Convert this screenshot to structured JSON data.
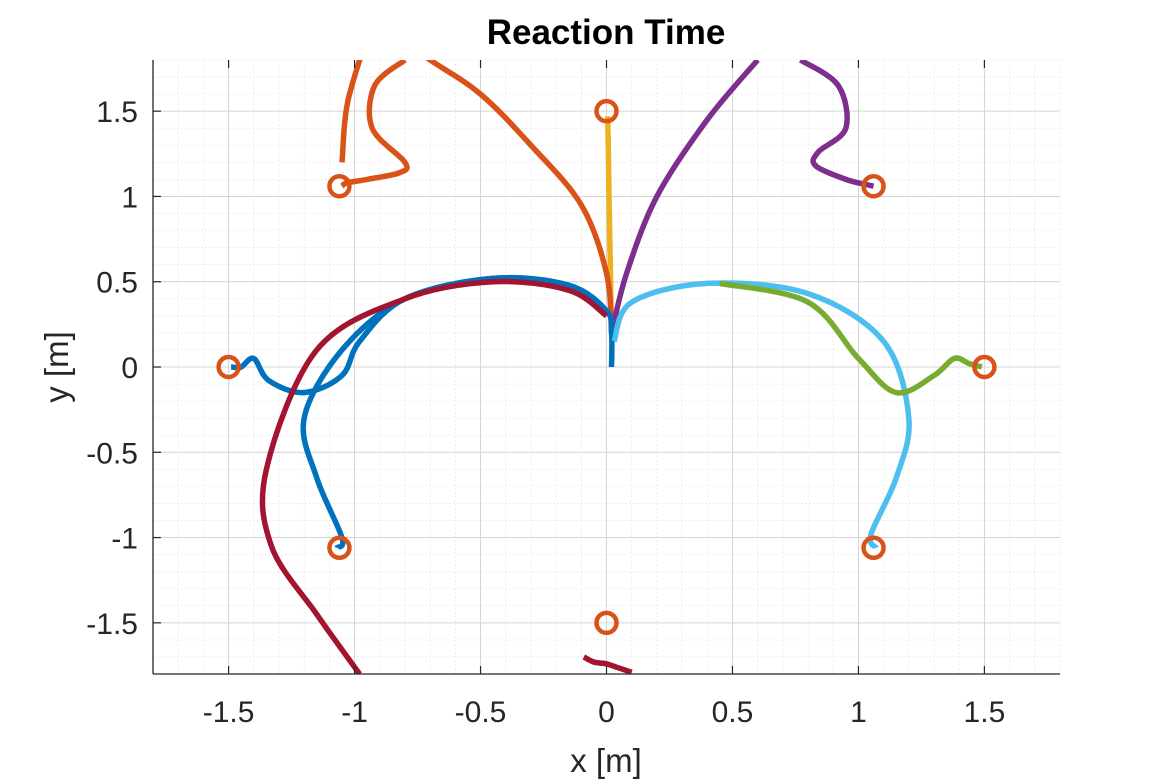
{
  "chart_data": {
    "type": "line",
    "title": "Reaction Time",
    "xlabel": "x [m]",
    "ylabel": "y [m]",
    "xlim": [
      -1.8,
      1.8
    ],
    "ylim": [
      -1.8,
      1.8
    ],
    "grid": true,
    "minor_grid": true,
    "legend": "none",
    "x_ticks": [
      -1.5,
      -1,
      -0.5,
      0,
      0.5,
      1,
      1.5
    ],
    "y_ticks": [
      -1.5,
      -1,
      -0.5,
      0,
      0.5,
      1,
      1.5
    ],
    "x_tick_labels": [
      "-1.5",
      "-1",
      "-0.5",
      "0",
      "0.5",
      "1",
      "1.5"
    ],
    "y_tick_labels": [
      "-1.5",
      "-1",
      "-0.5",
      "0",
      "0.5",
      "1",
      "1.5"
    ],
    "targets": {
      "color": "#D95319",
      "points": [
        {
          "x": 0,
          "y": 1.5
        },
        {
          "x": -1.06,
          "y": 1.06
        },
        {
          "x": 1.06,
          "y": 1.06
        },
        {
          "x": -1.5,
          "y": 0
        },
        {
          "x": 1.5,
          "y": 0
        },
        {
          "x": -1.06,
          "y": -1.06
        },
        {
          "x": 1.06,
          "y": -1.06
        },
        {
          "x": 0,
          "y": -1.5
        }
      ]
    },
    "series": [
      {
        "color": "#EDB120",
        "x": [
          0.02,
          0.015,
          0.01,
          0.007,
          0.005,
          0.005
        ],
        "y": [
          0.2,
          0.6,
          1.0,
          1.3,
          1.45,
          1.47
        ]
      },
      {
        "color": "#D95319",
        "x": [
          0.02,
          0.0,
          -0.1,
          -0.3,
          -0.5,
          -0.7,
          -0.9,
          -1.02,
          -1.05
        ],
        "y": [
          0.2,
          0.55,
          0.95,
          1.3,
          1.6,
          1.8,
          2.0,
          1.6,
          1.2
        ]
      },
      {
        "color": "#D95319",
        "x": [
          -0.8,
          -0.92,
          -0.93,
          -0.8,
          -0.82,
          -0.95,
          -1.03,
          -1.05
        ],
        "y": [
          1.8,
          1.65,
          1.4,
          1.2,
          1.14,
          1.1,
          1.08,
          1.06
        ]
      },
      {
        "color": "#7E2F8E",
        "x": [
          0.02,
          0.08,
          0.2,
          0.4,
          0.6
        ],
        "y": [
          0.2,
          0.55,
          1.0,
          1.45,
          1.8
        ]
      },
      {
        "color": "#7E2F8E",
        "x": [
          0.77,
          0.92,
          0.95,
          0.84,
          0.83,
          0.95,
          1.03,
          1.06
        ],
        "y": [
          1.8,
          1.65,
          1.4,
          1.26,
          1.18,
          1.1,
          1.07,
          1.06
        ]
      },
      {
        "color": "#0072BD",
        "x": [
          0.02,
          0.02,
          0.0,
          -0.15,
          -0.45,
          -0.8,
          -1.05,
          -1.2,
          -1.15,
          -1.05,
          -1.07
        ],
        "y": [
          0.0,
          0.2,
          0.33,
          0.48,
          0.52,
          0.4,
          0.1,
          -0.3,
          -0.65,
          -1.0,
          -1.06
        ]
      },
      {
        "color": "#0072BD",
        "x": [
          0.0,
          -0.15,
          -0.45,
          -0.8,
          -0.98,
          -1.05,
          -1.2,
          -1.34,
          -1.4,
          -1.45,
          -1.49
        ],
        "y": [
          0.33,
          0.47,
          0.52,
          0.4,
          0.15,
          -0.05,
          -0.15,
          -0.08,
          0.05,
          0.0,
          0.0
        ]
      },
      {
        "color": "#A2142F",
        "x": [
          0.0,
          -0.15,
          -0.45,
          -0.8,
          -1.15,
          -1.35,
          -1.33,
          -1.15,
          -0.98
        ],
        "y": [
          0.3,
          0.45,
          0.5,
          0.4,
          0.1,
          -0.6,
          -1.05,
          -1.45,
          -1.8
        ]
      },
      {
        "color": "#A2142F",
        "x": [
          -0.09,
          -0.05,
          0.0,
          0.04,
          0.1
        ],
        "y": [
          -1.7,
          -1.73,
          -1.74,
          -1.76,
          -1.79
        ]
      },
      {
        "color": "#4DBEEE",
        "x": [
          0.03,
          0.1,
          0.4,
          0.8,
          1.1,
          1.2,
          1.15,
          1.05,
          1.07
        ],
        "y": [
          0.15,
          0.38,
          0.49,
          0.43,
          0.15,
          -0.3,
          -0.65,
          -0.98,
          -1.06
        ]
      },
      {
        "color": "#77AC30",
        "x": [
          0.45,
          0.8,
          1.0,
          1.15,
          1.3,
          1.38,
          1.44,
          1.49
        ],
        "y": [
          0.49,
          0.38,
          0.05,
          -0.15,
          -0.05,
          0.05,
          0.02,
          0.0
        ]
      }
    ]
  }
}
